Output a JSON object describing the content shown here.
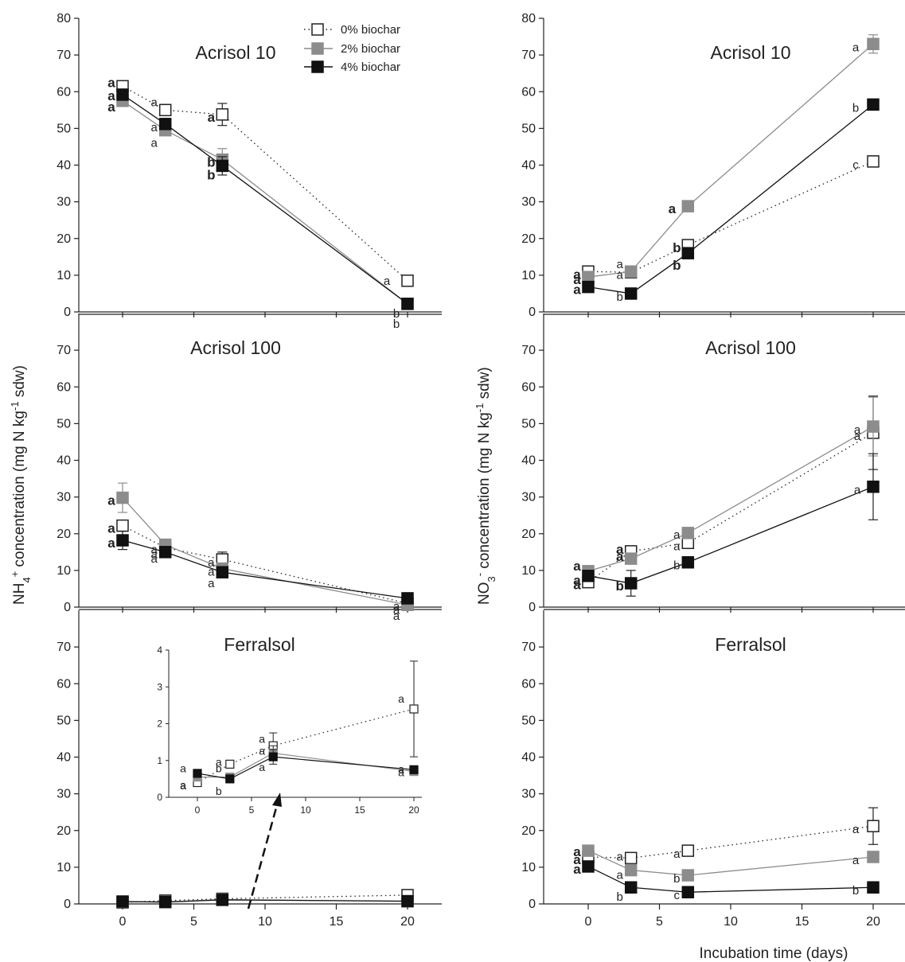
{
  "chart_data": [
    {
      "type": "line",
      "panel": "ammonium",
      "title": "Acrisol 10",
      "xlim": [
        -2,
        22
      ],
      "ylim": [
        0,
        80
      ],
      "yticks": [
        0,
        10,
        20,
        30,
        40,
        50,
        60,
        70,
        80
      ],
      "x": [
        0,
        3,
        7,
        20
      ],
      "series": [
        {
          "name": "0% biochar",
          "values": [
            61.5,
            55,
            53.8,
            8.5
          ],
          "errors": [
            1.0,
            1.5,
            3.0,
            1.0
          ],
          "letters": [
            "a",
            "a",
            "a",
            "a"
          ]
        },
        {
          "name": "2% biochar",
          "values": [
            57.5,
            49.5,
            41.5,
            2.2
          ],
          "errors": [
            1.0,
            1.0,
            3.0,
            0.5
          ],
          "letters": [
            "a",
            "a",
            "b",
            "b"
          ]
        },
        {
          "name": "4% biochar",
          "values": [
            59.2,
            51.2,
            39.8,
            2.2
          ],
          "errors": [
            1.5,
            1.0,
            2.5,
            0.5
          ],
          "letters": [
            "a",
            "a",
            "b",
            "b"
          ]
        }
      ]
    },
    {
      "type": "line",
      "panel": "ammonium",
      "title": "Acrisol 100",
      "xlim": [
        -2,
        22
      ],
      "ylim": [
        0,
        80
      ],
      "yticks": [
        0,
        10,
        20,
        30,
        40,
        50,
        60,
        70
      ],
      "x": [
        0,
        3,
        7,
        20
      ],
      "series": [
        {
          "name": "0% biochar",
          "values": [
            22.2,
            16.2,
            13,
            1.0
          ],
          "errors": [
            1.5,
            1.0,
            2.0,
            0.5
          ],
          "letters": [
            "a",
            "a",
            "a",
            "a"
          ]
        },
        {
          "name": "2% biochar",
          "values": [
            29.8,
            17,
            10.5,
            0.6
          ],
          "errors": [
            4.0,
            1.0,
            1.0,
            0.3
          ],
          "letters": [
            "a",
            "a",
            "a",
            "a"
          ]
        },
        {
          "name": "4% biochar",
          "values": [
            18.2,
            15,
            9.5,
            2.4
          ],
          "errors": [
            2.5,
            1.0,
            1.0,
            0.5
          ],
          "letters": [
            "a",
            "a",
            "a",
            "a"
          ]
        }
      ]
    },
    {
      "type": "line",
      "panel": "ammonium",
      "title": "Ferralsol",
      "xlim": [
        -2,
        22
      ],
      "ylim": [
        0,
        80
      ],
      "xticks": [
        0,
        5,
        10,
        15,
        20
      ],
      "yticks": [
        0,
        10,
        20,
        30,
        40,
        50,
        60,
        70
      ],
      "x": [
        0,
        3,
        7,
        20
      ],
      "series": [
        {
          "name": "0% biochar",
          "values": [
            0.4,
            0.9,
            1.4,
            2.4
          ]
        },
        {
          "name": "2% biochar",
          "values": [
            0.55,
            0.55,
            1.2,
            0.7
          ]
        },
        {
          "name": "4% biochar",
          "values": [
            0.65,
            0.5,
            1.1,
            0.75
          ]
        }
      ],
      "inset": {
        "xlim": [
          -2,
          22
        ],
        "ylim": [
          0,
          4
        ],
        "xticks": [
          0,
          5,
          10,
          15,
          20
        ],
        "yticks": [
          0,
          1,
          2,
          3,
          4
        ],
        "x": [
          0,
          3,
          7,
          20
        ],
        "series": [
          {
            "name": "0% biochar",
            "values": [
              0.4,
              0.9,
              1.4,
              2.4
            ],
            "errors": [
              0.1,
              0.1,
              0.35,
              1.3
            ],
            "letters": [
              "a",
              "a",
              "a",
              "a"
            ]
          },
          {
            "name": "2% biochar",
            "values": [
              0.55,
              0.55,
              1.2,
              0.7
            ],
            "errors": [
              0.1,
              0.1,
              0.2,
              0.1
            ],
            "letters": [
              "a",
              "b",
              "a",
              "a"
            ]
          },
          {
            "name": "4% biochar",
            "values": [
              0.65,
              0.5,
              1.1,
              0.75
            ],
            "errors": [
              0.1,
              0.1,
              0.2,
              0.1
            ],
            "letters": [
              "a",
              "b",
              "a",
              "a"
            ]
          }
        ]
      }
    },
    {
      "type": "line",
      "panel": "nitrate",
      "title": "Acrisol 10",
      "xlim": [
        -2,
        22
      ],
      "ylim": [
        0,
        80
      ],
      "yticks": [
        0,
        10,
        20,
        30,
        40,
        50,
        60,
        70,
        80
      ],
      "x": [
        0,
        3,
        7,
        20
      ],
      "series": [
        {
          "name": "0% biochar",
          "values": [
            11,
            10.8,
            18.2,
            41
          ],
          "errors": [
            1.0,
            1.0,
            1.0,
            1.5
          ],
          "letters": [
            "a",
            "a",
            "b",
            "c"
          ]
        },
        {
          "name": "2% biochar",
          "values": [
            9.5,
            11,
            28.8,
            73
          ],
          "errors": [
            1.0,
            1.0,
            1.0,
            2.5
          ],
          "letters": [
            "a",
            "a",
            "a",
            "a"
          ]
        },
        {
          "name": "4% biochar",
          "values": [
            6.8,
            5,
            16,
            56.5
          ],
          "errors": [
            0.8,
            0.8,
            1.0,
            1.0
          ],
          "letters": [
            "a",
            "b",
            "b",
            "b"
          ]
        }
      ]
    },
    {
      "type": "line",
      "panel": "nitrate",
      "title": "Acrisol 100",
      "xlim": [
        -2,
        22
      ],
      "ylim": [
        0,
        80
      ],
      "yticks": [
        0,
        10,
        20,
        30,
        40,
        50,
        60,
        70
      ],
      "x": [
        0,
        3,
        7,
        20
      ],
      "series": [
        {
          "name": "0% biochar",
          "values": [
            6.8,
            15.2,
            17.5,
            47.5
          ],
          "errors": [
            1.0,
            1.0,
            1.0,
            10.0
          ],
          "letters": [
            "a",
            "a",
            "a",
            "a"
          ]
        },
        {
          "name": "2% biochar",
          "values": [
            9.8,
            13.2,
            20.2,
            49.2
          ],
          "errors": [
            1.0,
            1.0,
            1.0,
            8.0
          ],
          "letters": [
            "a",
            "a",
            "a",
            "a"
          ]
        },
        {
          "name": "4% biochar",
          "values": [
            8.5,
            6.5,
            12.2,
            32.8
          ],
          "errors": [
            1.0,
            3.5,
            1.0,
            9.0
          ],
          "letters": [
            "a",
            "b",
            "b",
            "a"
          ]
        }
      ]
    },
    {
      "type": "line",
      "panel": "nitrate",
      "title": "Ferralsol",
      "xlim": [
        -2,
        22
      ],
      "ylim": [
        0,
        80
      ],
      "xticks": [
        0,
        5,
        10,
        15,
        20
      ],
      "yticks": [
        0,
        10,
        20,
        30,
        40,
        50,
        60,
        70
      ],
      "x": [
        0,
        3,
        7,
        20
      ],
      "series": [
        {
          "name": "0% biochar",
          "values": [
            12.8,
            12.5,
            14.5,
            21.2
          ],
          "errors": [
            1.0,
            1.0,
            1.0,
            5.0
          ],
          "letters": [
            "a",
            "a",
            "a",
            "a"
          ]
        },
        {
          "name": "2% biochar",
          "values": [
            14.5,
            9.2,
            7.8,
            12.8
          ],
          "errors": [
            1.0,
            1.0,
            1.0,
            1.0
          ],
          "letters": [
            "a",
            "a",
            "b",
            "a"
          ]
        },
        {
          "name": "4% biochar",
          "values": [
            10.2,
            4.5,
            3.2,
            4.5
          ],
          "errors": [
            1.0,
            0.8,
            0.8,
            0.8
          ],
          "letters": [
            "a",
            "b",
            "c",
            "b"
          ]
        }
      ]
    }
  ],
  "legend": [
    {
      "label": "0% biochar",
      "style": "dotted",
      "fill": "#ffffff"
    },
    {
      "label": "2% biochar",
      "style": "solid-grey",
      "fill": "#8c8c8c"
    },
    {
      "label": "4% biochar",
      "style": "solid-black",
      "fill": "#111111"
    }
  ],
  "labels": {
    "ammonium_ylabel": "NH4+ concentration (mg N kg-1 sdw)",
    "nitrate_ylabel": "NO3- concentration (mg N kg-1 sdw)",
    "xlabel": "Incubation time (days)"
  },
  "colors": {
    "c0": "#ffffff",
    "c2": "#8c8c8c",
    "c4": "#111111",
    "axis": "#222222"
  }
}
